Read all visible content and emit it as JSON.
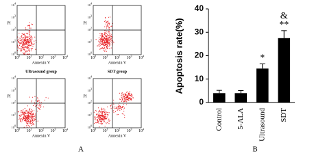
{
  "panel_a": {
    "label": "A",
    "tick_base": "10",
    "tick_exponents": [
      "0",
      "1",
      "2",
      "3",
      "4"
    ],
    "plots": [
      {
        "x_label": "Annexin V",
        "y_label": "PI"
      },
      {
        "x_label": "Annexin V",
        "y_label": "PI"
      },
      {
        "title": "Ultrasound group",
        "x_label": "Annexin V",
        "y_label": "PI"
      },
      {
        "title": "SDT group",
        "x_label": "Annexin V",
        "y_label": "PI"
      }
    ]
  },
  "chart_data": {
    "type": "bar",
    "panel_label": "B",
    "y_label": "Apoptosis rate(%)",
    "categories": [
      "Control",
      "5-ALA",
      "Ultrasound",
      "SDT"
    ],
    "values": [
      4,
      4,
      14.5,
      27.5
    ],
    "errors": [
      1.2,
      1.1,
      2,
      3.2
    ],
    "annotations": [
      null,
      null,
      [
        "*"
      ],
      [
        "&",
        "**"
      ]
    ],
    "color": "#000000",
    "ylim": [
      0,
      40
    ],
    "yticks": [
      0,
      10,
      20,
      30,
      40
    ]
  }
}
